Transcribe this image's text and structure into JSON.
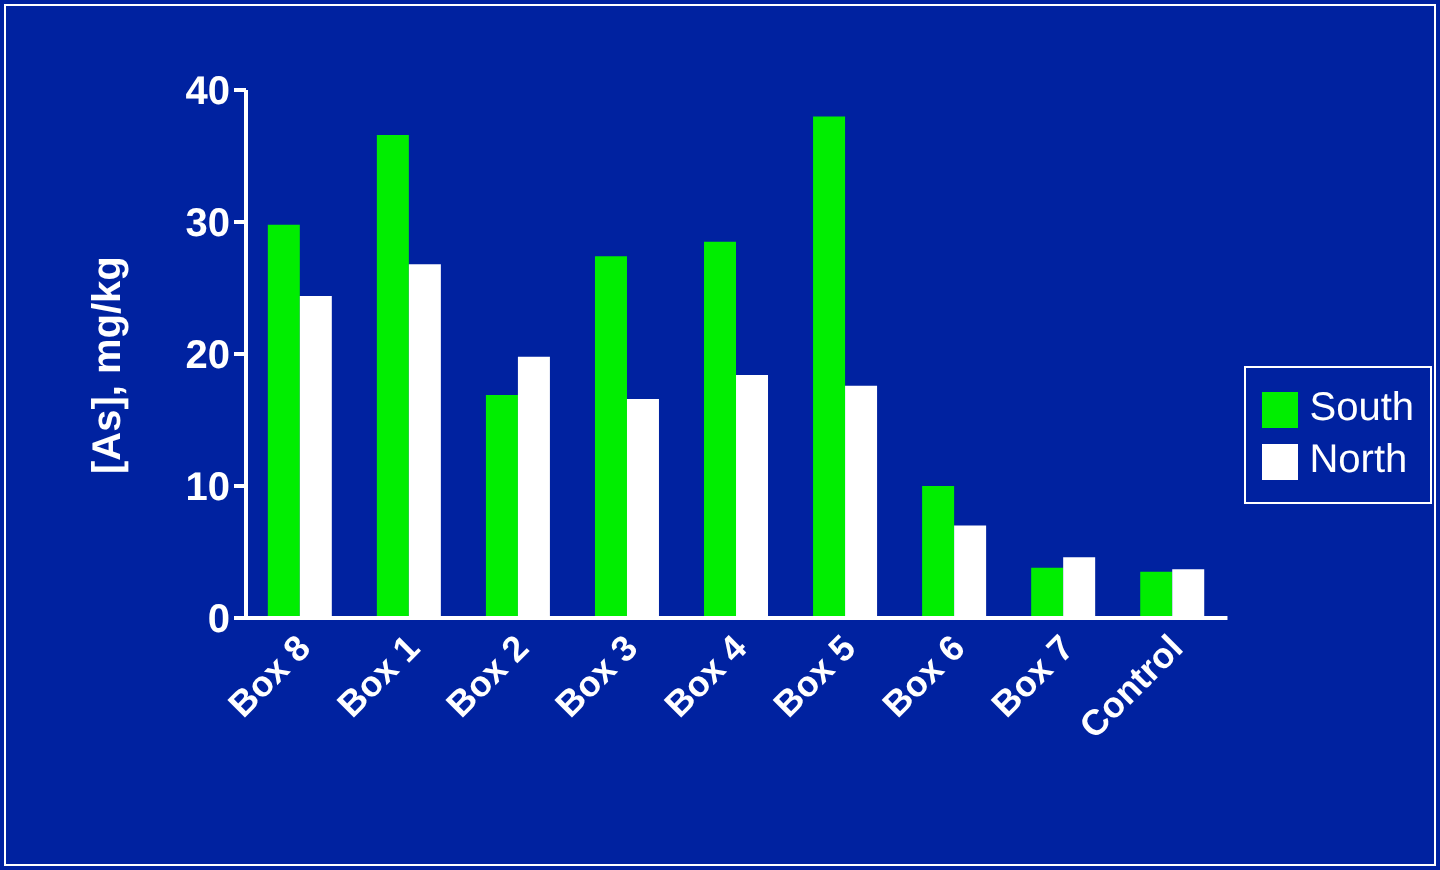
{
  "chart_data": {
    "type": "bar",
    "ylabel": "[As], mg/kg",
    "categories": [
      "Box 8",
      "Box 1",
      "Box 2",
      "Box 3",
      "Box 4",
      "Box 5",
      "Box 6",
      "Box 7",
      "Control"
    ],
    "series": [
      {
        "name": "South",
        "color": "#00ee00",
        "values": [
          29.8,
          36.6,
          16.9,
          27.4,
          28.5,
          38.0,
          10.0,
          3.8,
          3.5
        ]
      },
      {
        "name": "North",
        "color": "#ffffff",
        "values": [
          24.4,
          26.8,
          19.8,
          16.6,
          18.4,
          17.6,
          7.0,
          4.6,
          3.7
        ]
      }
    ],
    "ylim": [
      0,
      40
    ],
    "yticks": [
      0,
      10,
      20,
      30,
      40
    ],
    "grid": false,
    "legend": "right"
  }
}
